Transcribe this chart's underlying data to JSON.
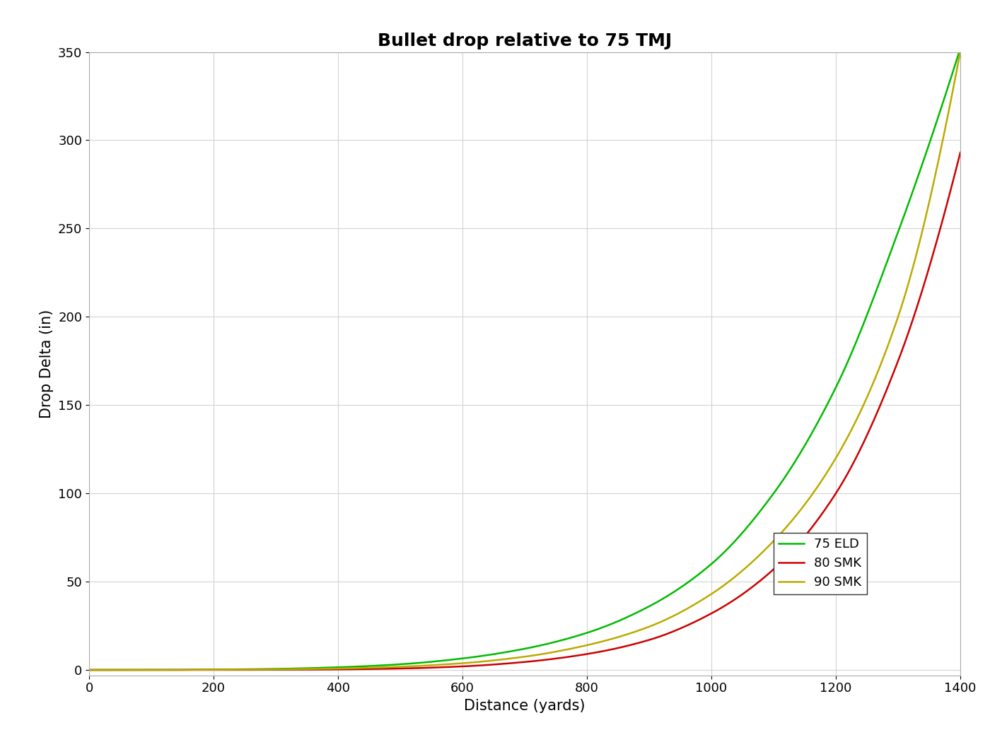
{
  "title": "Bullet drop relative to 75 TMJ",
  "xlabel": "Distance (yards)",
  "ylabel": "Drop Delta (in)",
  "xlim": [
    0,
    1400
  ],
  "ylim": [
    -3,
    350
  ],
  "xticks": [
    0,
    200,
    400,
    600,
    800,
    1000,
    1200,
    1400
  ],
  "yticks": [
    0,
    50,
    100,
    150,
    200,
    250,
    300,
    350
  ],
  "background_color": "#ffffff",
  "grid_color": "#d3d3d3",
  "distances_yards": [
    0,
    100,
    200,
    300,
    400,
    500,
    600,
    700,
    800,
    900,
    1000,
    1100,
    1200,
    1300,
    1400
  ],
  "drop_75ELD": [
    0.0,
    0.0,
    0.2,
    0.6,
    1.5,
    3.2,
    6.5,
    12.0,
    21.0,
    36.0,
    60.0,
    100.0,
    160.0,
    248.0,
    352.0
  ],
  "drop_80SMK": [
    0.0,
    0.0,
    0.0,
    0.1,
    0.3,
    0.8,
    2.0,
    4.5,
    9.0,
    17.0,
    32.0,
    57.0,
    100.0,
    175.0,
    293.0
  ],
  "drop_90SMK": [
    0.0,
    0.0,
    0.1,
    0.3,
    0.8,
    1.8,
    3.8,
    7.5,
    14.0,
    24.5,
    43.0,
    73.0,
    120.0,
    200.0,
    350.0
  ],
  "series": [
    {
      "label": "75 ELD",
      "color": "#00bb00"
    },
    {
      "label": "80 SMK",
      "color": "#cc0000"
    },
    {
      "label": "90 SMK",
      "color": "#bbaa00"
    }
  ],
  "title_fontsize": 18,
  "label_fontsize": 15,
  "tick_fontsize": 13,
  "legend_fontsize": 13,
  "line_width": 1.8
}
